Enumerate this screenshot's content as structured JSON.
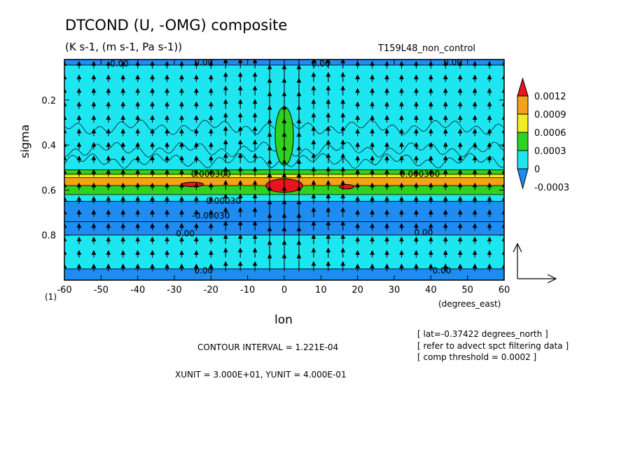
{
  "chart_data": {
    "type": "heatmap",
    "title": "DTCOND (U, -OMG) composite",
    "subtitle": "(K s-1, (m s-1, Pa s-1))",
    "run_name": "T159L48_non_control",
    "xlabel": "lon",
    "xunits": "(degrees_east)",
    "ylabel": "sigma",
    "x_ticks": [
      "-60",
      "-50",
      "-40",
      "-30",
      "-20",
      "-10",
      "0",
      "10",
      "20",
      "30",
      "40",
      "50",
      "60"
    ],
    "y_ticks": [
      "0.2",
      "0.4",
      "0.6",
      "0.8"
    ],
    "y_corner_label": "(1)",
    "xlim": [
      -60,
      60
    ],
    "ylim": [
      1.0,
      0.02
    ],
    "legend": {
      "placement": "right",
      "levels": [
        "0.0012",
        "0.0009",
        "0.0006",
        "0.0003",
        "0",
        "-0.0003"
      ],
      "colors": [
        "#e8141e",
        "#f5a11a",
        "#f2ee1e",
        "#2fd21e",
        "#1ee6f0",
        "#1e8cf0"
      ]
    },
    "bands": [
      {
        "sigma_top": 0.02,
        "sigma_bottom": 0.045,
        "value": -0.0003
      },
      {
        "sigma_top": 0.045,
        "sigma_bottom": 0.51,
        "value": 0.0
      },
      {
        "sigma_top": 0.51,
        "sigma_bottom": 0.53,
        "value": 0.0003
      },
      {
        "sigma_top": 0.53,
        "sigma_bottom": 0.545,
        "value": 0.0006
      },
      {
        "sigma_top": 0.545,
        "sigma_bottom": 0.58,
        "value": 0.0009
      },
      {
        "sigma_top": 0.58,
        "sigma_bottom": 0.62,
        "value": 0.0003
      },
      {
        "sigma_top": 0.62,
        "sigma_bottom": 0.65,
        "value": 0.0
      },
      {
        "sigma_top": 0.65,
        "sigma_bottom": 0.74,
        "value": -0.0006
      },
      {
        "sigma_top": 0.74,
        "sigma_bottom": 0.8,
        "value": -0.0003
      },
      {
        "sigma_top": 0.8,
        "sigma_bottom": 0.95,
        "value": 0.0
      },
      {
        "sigma_top": 0.95,
        "sigma_bottom": 1.0,
        "value": -0.0003
      }
    ],
    "features": [
      {
        "lon": 0,
        "sigma_center": 0.58,
        "value": 0.0012,
        "lon_halfwidth": 5,
        "sigma_halfwidth": 0.03
      },
      {
        "lon": 0,
        "sigma_center": 0.36,
        "value": 0.0003,
        "lon_halfwidth": 2.5,
        "sigma_halfwidth": 0.13
      },
      {
        "lon": 17,
        "sigma_center": 0.585,
        "value": 0.0012,
        "lon_halfwidth": 2,
        "sigma_halfwidth": 0.01
      },
      {
        "lon": -25,
        "sigma_center": 0.575,
        "value": 0.0012,
        "lon_halfwidth": 3,
        "sigma_halfwidth": 0.01
      }
    ],
    "contour_labels": [
      {
        "text": "0.00",
        "lon": -45,
        "sigma": 0.035
      },
      {
        "text": "0.00",
        "lon": -22,
        "sigma": 0.03
      },
      {
        "text": "0.00",
        "lon": 10,
        "sigma": 0.035
      },
      {
        "text": "0.00",
        "lon": 46,
        "sigma": 0.03
      },
      {
        "text": "0.000300",
        "lon": -20,
        "sigma": 0.525
      },
      {
        "text": "0.000300",
        "lon": 37,
        "sigma": 0.525
      },
      {
        "text": "-0.00030",
        "lon": -17,
        "sigma": 0.645
      },
      {
        "text": "-0.00030",
        "lon": -20,
        "sigma": 0.71
      },
      {
        "text": "0.00",
        "lon": -27,
        "sigma": 0.79
      },
      {
        "text": "0.00",
        "lon": 38,
        "sigma": 0.785
      },
      {
        "text": "0.00",
        "lon": -22,
        "sigma": 0.955
      },
      {
        "text": "0.00",
        "lon": 43,
        "sigma": 0.955
      }
    ],
    "vectors": {
      "x_unit": 30.0,
      "y_unit": 0.4
    }
  },
  "annotations": {
    "contour_interval": "CONTOUR INTERVAL = 1.221E-04",
    "xyunit": "XUNIT = 3.000E+01, YUNIT = 4.000E-01",
    "notes": [
      "[ lat=-0.37422 degrees_north ]",
      "[ refer to advect spct filtering data ]",
      "[ comp threshold = 0.0002 ]"
    ]
  }
}
